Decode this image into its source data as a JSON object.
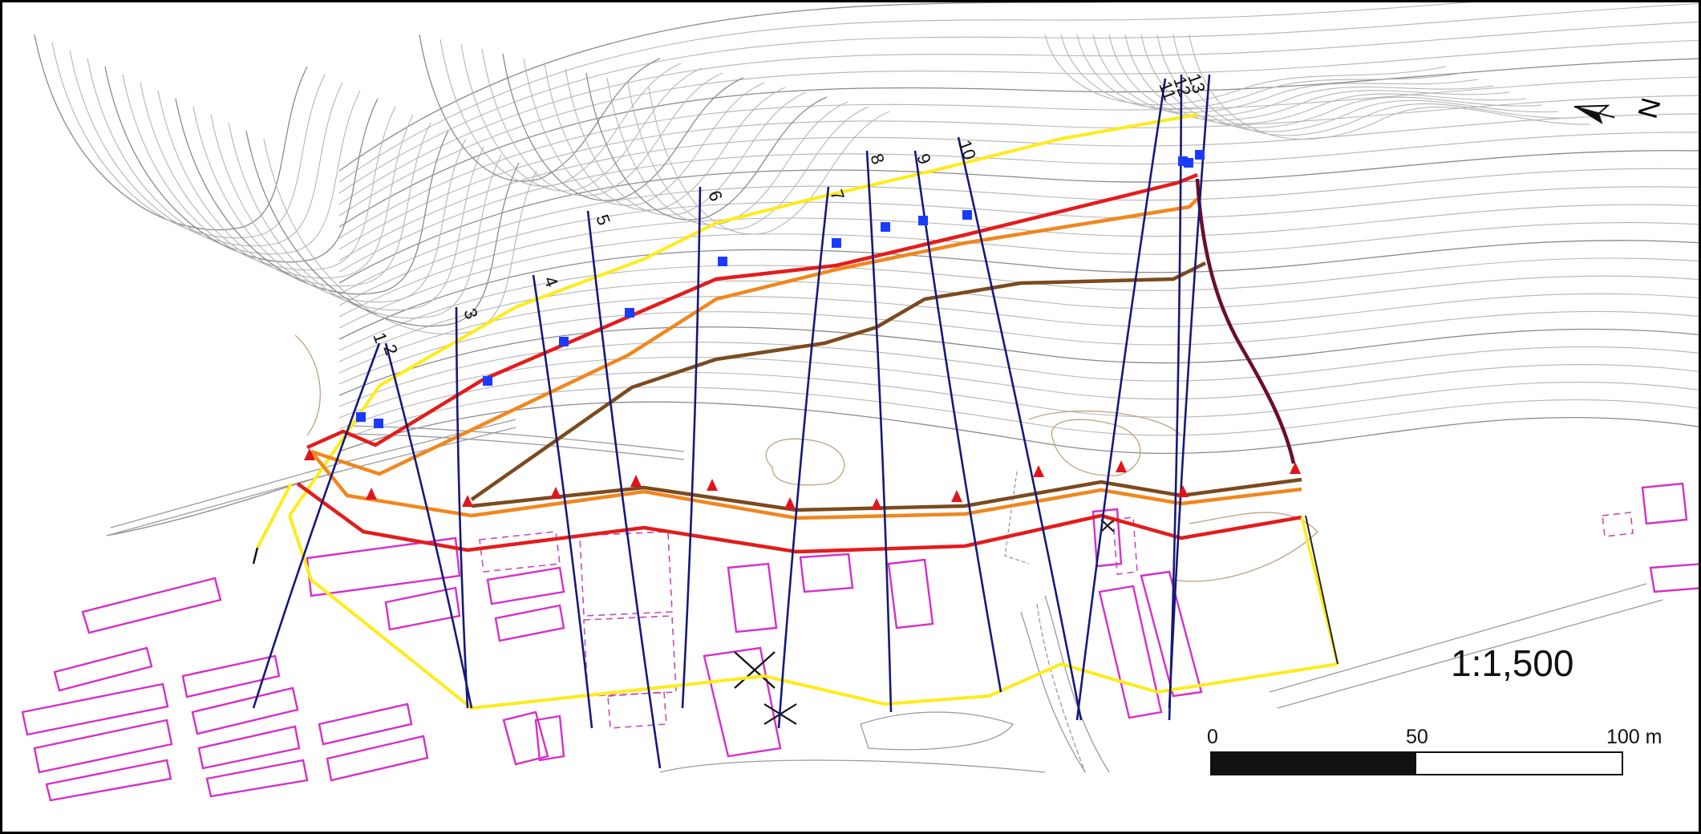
{
  "map": {
    "scale_ratio": "1:1,500",
    "scale_bar": {
      "ticks": [
        "0",
        "50",
        "100 m"
      ],
      "length_m": 100
    },
    "north_arrow": {
      "label": "N",
      "icon": "north-arrow-icon"
    },
    "profile_lines": {
      "labels": [
        "1",
        "2",
        "3",
        "4",
        "5",
        "6",
        "7",
        "8",
        "9",
        "10",
        "11",
        "12",
        "13"
      ],
      "color": "#16197a"
    },
    "boundary_lines": [
      {
        "color": "#ffeb1a"
      },
      {
        "color": "#e31c1c"
      },
      {
        "color": "#f0871f"
      },
      {
        "color": "#7b4a1e"
      },
      {
        "color": "#6a0d2f"
      }
    ],
    "marker_colors": {
      "upper_square": "#1a3bff",
      "lower_triangle": "#e0151b"
    },
    "building_color": "#d62fc8",
    "contour_color": "#8a8a8a"
  }
}
